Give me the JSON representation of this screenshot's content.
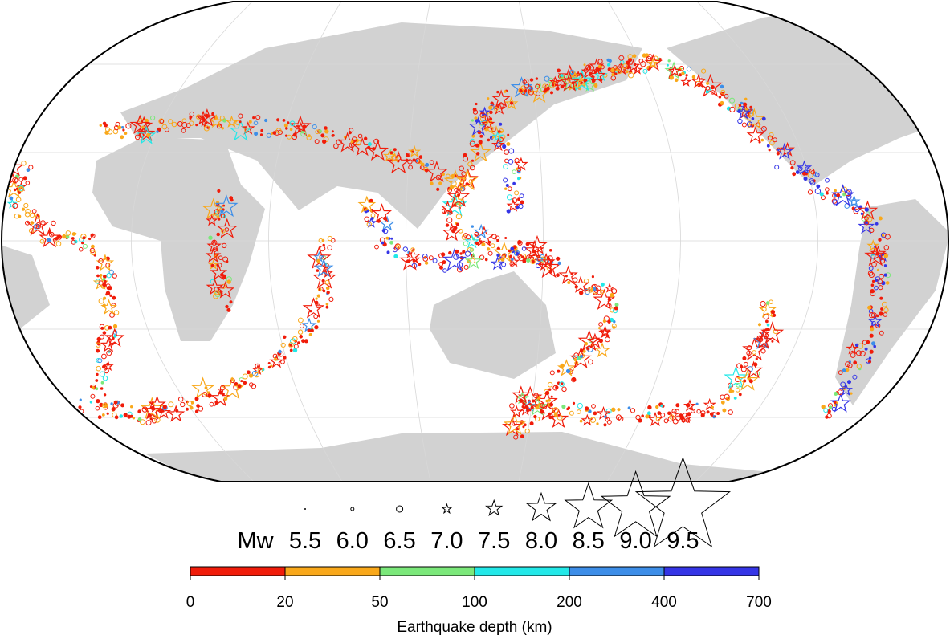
{
  "legend": {
    "prefix": "Mw",
    "magnitudes": [
      "5.5",
      "6.0",
      "6.5",
      "7.0",
      "7.5",
      "8.0",
      "8.5",
      "9.0",
      "9.5"
    ]
  },
  "depth_scale": {
    "title": "Earthquake depth (km)",
    "ticks": [
      0,
      20,
      50,
      100,
      200,
      400,
      700
    ],
    "colors": [
      "#f01c0a",
      "#f9a81a",
      "#7be87a",
      "#22e8e8",
      "#3d8ee8",
      "#3535e6"
    ]
  }
}
